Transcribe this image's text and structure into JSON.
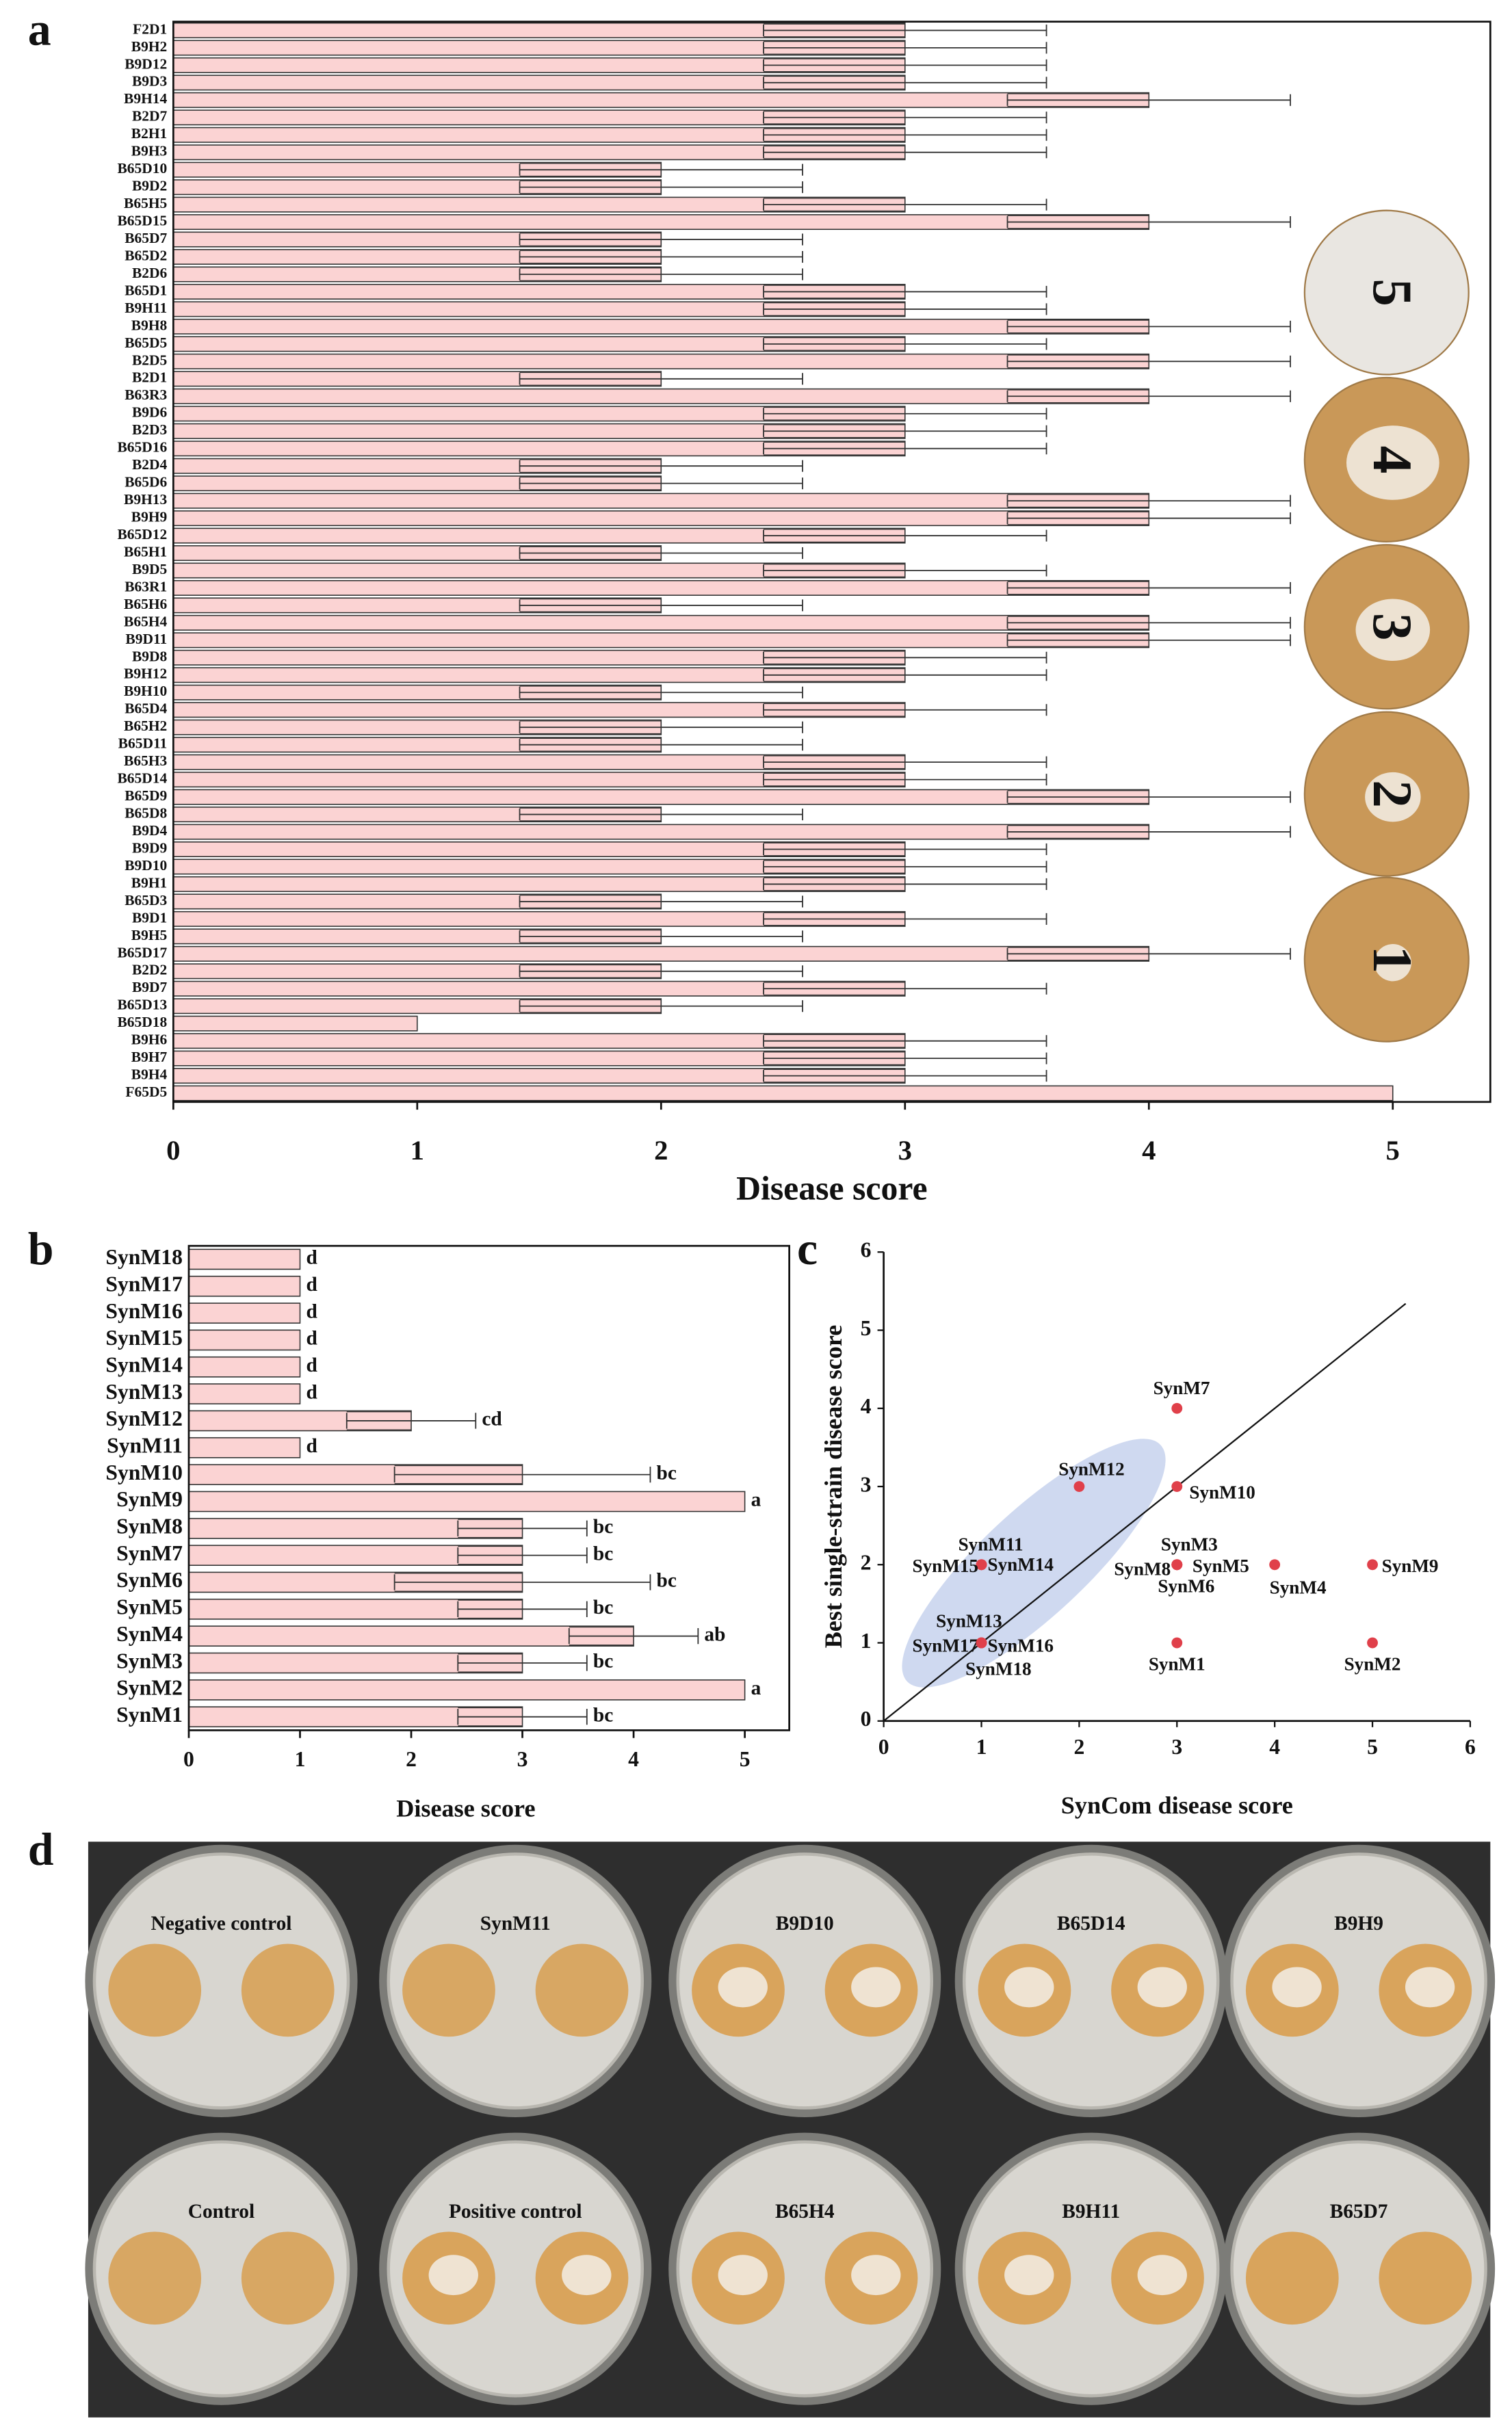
{
  "chart_data": [
    {
      "type": "bar",
      "panel": "a",
      "orientation": "horizontal",
      "categories": [
        "F2D1",
        "B9H2",
        "B9D12",
        "B9D3",
        "B9H14",
        "B2D7",
        "B2H1",
        "B9H3",
        "B65D10",
        "B9D2",
        "B65H5",
        "B65D15",
        "B65D7",
        "B65D2",
        "B2D6",
        "B65D1",
        "B9H11",
        "B9H8",
        "B65D5",
        "B2D5",
        "B2D1",
        "B63R3",
        "B9D6",
        "B2D3",
        "B65D16",
        "B2D4",
        "B65D6",
        "B9H13",
        "B9H9",
        "B65D12",
        "B65H1",
        "B9D5",
        "B63R1",
        "B65H6",
        "B65H4",
        "B9D11",
        "B9D8",
        "B9H12",
        "B9H10",
        "B65D4",
        "B65H2",
        "B65D11",
        "B65H3",
        "B65D14",
        "B65D9",
        "B65D8",
        "B9D4",
        "B9D9",
        "B9D10",
        "B9H1",
        "B65D3",
        "B9D1",
        "B9H5",
        "B65D17",
        "B2D2",
        "B9D7",
        "B65D13",
        "B65D18",
        "B9H6",
        "B9H7",
        "B9H4",
        "F65D5"
      ],
      "values": [
        3,
        3,
        3,
        3,
        4,
        3,
        3,
        3,
        2,
        2,
        3,
        4,
        2,
        2,
        2,
        3,
        3,
        4,
        3,
        4,
        2,
        4,
        3,
        3,
        3,
        2,
        2,
        4,
        4,
        3,
        2,
        3,
        4,
        2,
        4,
        4,
        3,
        3,
        2,
        3,
        2,
        2,
        3,
        3,
        4,
        2,
        4,
        3,
        3,
        3,
        2,
        3,
        2,
        4,
        2,
        3,
        2,
        1,
        3,
        3,
        3,
        5
      ],
      "errors": [
        0.58,
        0.58,
        0.58,
        0.58,
        0.58,
        0.58,
        0.58,
        0.58,
        0.58,
        0.58,
        0.58,
        0.58,
        0.58,
        0.58,
        0.58,
        0.58,
        0.58,
        0.58,
        0.58,
        0.58,
        0.58,
        0.58,
        0.58,
        0.58,
        0.58,
        0.58,
        0.58,
        0.58,
        0.58,
        0.58,
        0.58,
        0.58,
        0.58,
        0.58,
        0.58,
        0.58,
        0.58,
        0.58,
        0.58,
        0.58,
        0.58,
        0.58,
        0.58,
        0.58,
        0.58,
        0.58,
        0.58,
        0.58,
        0.58,
        0.58,
        0.58,
        0.58,
        0.58,
        0.58,
        0.58,
        0.58,
        0.58,
        null,
        0.58,
        0.58,
        0.58,
        null
      ],
      "color": "#fbd3d3",
      "xlabel": "Disease score",
      "xlim": [
        0,
        5.4
      ],
      "xticks": [
        0,
        1,
        2,
        3,
        4,
        5
      ],
      "annotations": [
        "5",
        "4",
        "3",
        "2",
        "1"
      ]
    },
    {
      "type": "bar",
      "panel": "b",
      "orientation": "horizontal",
      "categories": [
        "SynM1",
        "SynM2",
        "SynM3",
        "SynM4",
        "SynM5",
        "SynM6",
        "SynM7",
        "SynM8",
        "SynM9",
        "SynM10",
        "SynM11",
        "SynM12",
        "SynM13",
        "SynM14",
        "SynM15",
        "SynM16",
        "SynM17",
        "SynM18"
      ],
      "values": [
        3,
        5,
        3,
        4,
        3,
        3,
        3,
        3,
        5,
        3,
        1,
        2,
        1,
        1,
        1,
        1,
        1,
        1
      ],
      "errors": [
        0.58,
        null,
        0.58,
        0.58,
        0.58,
        1.15,
        0.58,
        0.58,
        null,
        1.15,
        null,
        0.58,
        null,
        null,
        null,
        null,
        null,
        null
      ],
      "significance": [
        "bc",
        "a",
        "bc",
        "ab",
        "bc",
        "bc",
        "bc",
        "bc",
        "a",
        "bc",
        "d",
        "cd",
        "d",
        "d",
        "d",
        "d",
        "d",
        "d"
      ],
      "color": "#fbd3d3",
      "xlabel": "Disease score",
      "xlim": [
        0,
        5.4
      ],
      "xticks": [
        0,
        1,
        2,
        3,
        4,
        5
      ]
    },
    {
      "type": "scatter",
      "panel": "c",
      "names": [
        "SynM1",
        "SynM2",
        "SynM3",
        "SynM4",
        "SynM5",
        "SynM6",
        "SynM7",
        "SynM8",
        "SynM9",
        "SynM10",
        "SynM11",
        "SynM12",
        "SynM13",
        "SynM14",
        "SynM15",
        "SynM16",
        "SynM17",
        "SynM18"
      ],
      "x": [
        3,
        5,
        3,
        4,
        3,
        3,
        3,
        3,
        5,
        3,
        1,
        2,
        1,
        1,
        1,
        1,
        1,
        1
      ],
      "y": [
        1,
        1,
        2,
        2,
        2,
        2,
        4,
        2,
        2,
        3,
        2,
        3,
        1,
        2,
        2,
        1,
        1,
        1
      ],
      "color": "#e0404a",
      "xlabel": "SynCom disease score",
      "ylabel": "Best single-strain disease score",
      "xlim": [
        0,
        6
      ],
      "ylim": [
        0,
        6
      ],
      "xticks": [
        0,
        1,
        2,
        3,
        4,
        5,
        6
      ],
      "yticks": [
        0,
        1,
        2,
        3,
        4,
        5,
        6
      ]
    }
  ],
  "photos": {
    "panel": "d",
    "labels": [
      "Negative control",
      "SynM11",
      "B9D10",
      "B65D14",
      "B9H9",
      "Control",
      "Positive control",
      "B65H4",
      "B9H11",
      "B65D7"
    ]
  }
}
